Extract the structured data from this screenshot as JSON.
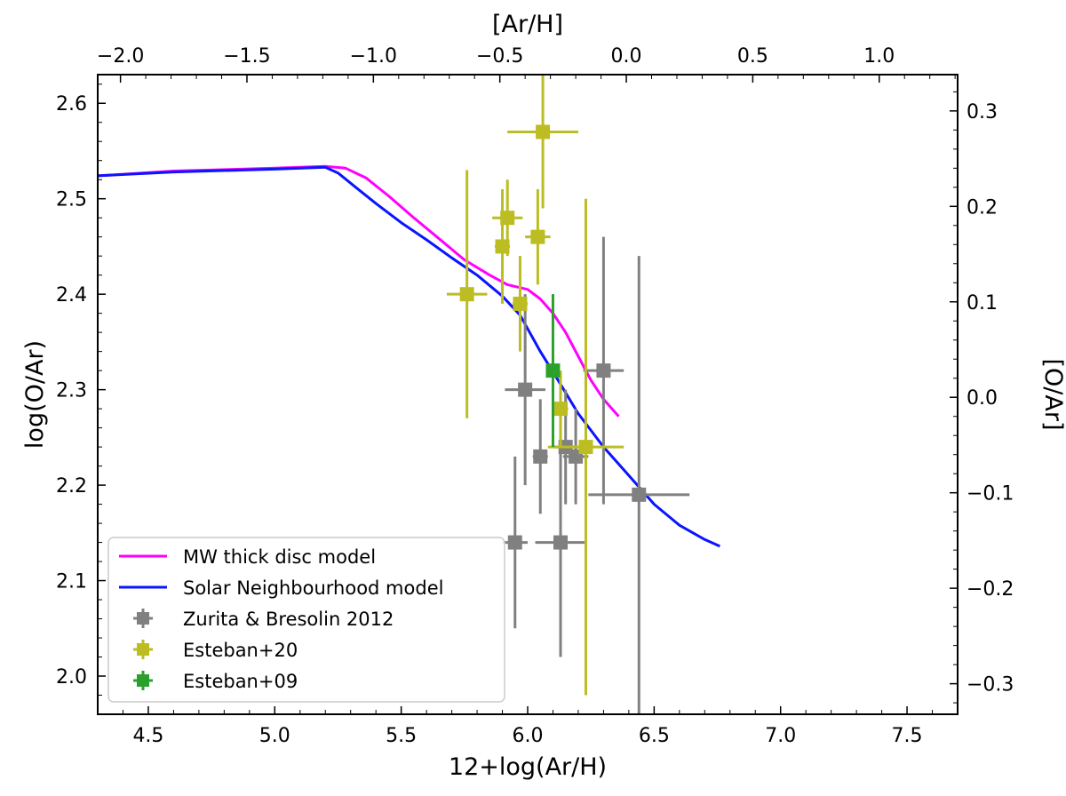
{
  "chart_data": {
    "type": "scatter",
    "xlabel": "12+log(Ar/H)",
    "ylabel": "log(O/Ar)",
    "top_xlabel": "[Ar/H]",
    "right_ylabel": "[O/Ar]",
    "xlim": [
      4.3,
      7.7
    ],
    "ylim": [
      1.96,
      2.63
    ],
    "top_xlim": [
      -2.09,
      1.31
    ],
    "right_ylim": [
      -0.332,
      0.338
    ],
    "x_ticks": [
      4.5,
      5.0,
      5.5,
      6.0,
      6.5,
      7.0,
      7.5
    ],
    "x_tick_labels": [
      "4.5",
      "5.0",
      "5.5",
      "6.0",
      "6.5",
      "7.0",
      "7.5"
    ],
    "y_ticks": [
      2.0,
      2.1,
      2.2,
      2.3,
      2.4,
      2.5,
      2.6
    ],
    "y_tick_labels": [
      "2.0",
      "2.1",
      "2.2",
      "2.3",
      "2.4",
      "2.5",
      "2.6"
    ],
    "top_ticks": [
      -2.0,
      -1.5,
      -1.0,
      -0.5,
      0.0,
      0.5,
      1.0
    ],
    "top_tick_labels": [
      "−2.0",
      "−1.5",
      "−1.0",
      "−0.5",
      "0.0",
      "0.5",
      "1.0"
    ],
    "right_ticks": [
      -0.3,
      -0.2,
      -0.1,
      0.0,
      0.1,
      0.2,
      0.3
    ],
    "right_tick_labels": [
      "−0.3",
      "−0.2",
      "−0.1",
      "0.0",
      "0.1",
      "0.2",
      "0.3"
    ],
    "grid": false,
    "legend_position": "bottom-left",
    "lines": [
      {
        "name": "MW thick disc model",
        "color": "#ff00ff",
        "x": [
          4.3,
          4.6,
          5.0,
          5.2,
          5.28,
          5.36,
          5.45,
          5.55,
          5.65,
          5.75,
          5.85,
          5.92,
          6.0,
          6.05,
          6.1,
          6.15,
          6.2,
          6.25,
          6.3,
          6.36
        ],
        "y": [
          2.524,
          2.529,
          2.532,
          2.534,
          2.532,
          2.522,
          2.503,
          2.48,
          2.458,
          2.436,
          2.42,
          2.41,
          2.405,
          2.395,
          2.38,
          2.36,
          2.335,
          2.31,
          2.29,
          2.272
        ]
      },
      {
        "name": "Solar Neighbourhood model",
        "color": "#0a14ff",
        "x": [
          4.3,
          4.6,
          5.0,
          5.2,
          5.25,
          5.32,
          5.4,
          5.5,
          5.6,
          5.7,
          5.8,
          5.9,
          5.97,
          6.05,
          6.12,
          6.2,
          6.3,
          6.4,
          6.5,
          6.6,
          6.7,
          6.76
        ],
        "y": [
          2.524,
          2.528,
          2.531,
          2.533,
          2.527,
          2.512,
          2.495,
          2.475,
          2.457,
          2.438,
          2.42,
          2.398,
          2.378,
          2.34,
          2.31,
          2.275,
          2.24,
          2.21,
          2.18,
          2.158,
          2.143,
          2.136
        ]
      }
    ],
    "series": [
      {
        "name": "Zurita & Bresolin 2012",
        "color": "#808080",
        "points": [
          {
            "x": 5.99,
            "y": 2.3,
            "xerr": 0.08,
            "yerr": 0.1
          },
          {
            "x": 6.05,
            "y": 2.23,
            "xerr": 0.03,
            "yerr": 0.06
          },
          {
            "x": 6.15,
            "y": 2.24,
            "xerr": 0.05,
            "yerr": 0.06
          },
          {
            "x": 6.19,
            "y": 2.23,
            "xerr": 0.05,
            "yerr": 0.05
          },
          {
            "x": 6.3,
            "y": 2.32,
            "xerr": 0.08,
            "yerr": 0.14
          },
          {
            "x": 5.95,
            "y": 2.14,
            "xerr": 0.05,
            "yerr": 0.09
          },
          {
            "x": 6.13,
            "y": 2.14,
            "xerr": 0.1,
            "yerr": 0.12
          },
          {
            "x": 6.44,
            "y": 2.19,
            "xerr": 0.2,
            "yerr": 0.25
          }
        ]
      },
      {
        "name": "Esteban+20",
        "color": "#bcbd22",
        "points": [
          {
            "x": 5.76,
            "y": 2.4,
            "xerr": 0.08,
            "yerr": 0.13
          },
          {
            "x": 5.9,
            "y": 2.45,
            "xerr": 0.03,
            "yerr": 0.06
          },
          {
            "x": 5.92,
            "y": 2.48,
            "xerr": 0.06,
            "yerr": 0.04
          },
          {
            "x": 5.97,
            "y": 2.39,
            "xerr": 0.03,
            "yerr": 0.05
          },
          {
            "x": 6.04,
            "y": 2.46,
            "xerr": 0.05,
            "yerr": 0.05
          },
          {
            "x": 6.06,
            "y": 2.57,
            "xerr": 0.14,
            "yerr": 0.08
          },
          {
            "x": 6.13,
            "y": 2.28,
            "xerr": 0.03,
            "yerr": 0.04
          },
          {
            "x": 6.23,
            "y": 2.24,
            "xerr": 0.15,
            "yerr": 0.26
          }
        ]
      },
      {
        "name": "Esteban+09",
        "color": "#2ca02c",
        "points": [
          {
            "x": 6.1,
            "y": 2.32,
            "xerr": 0.01,
            "yerr": 0.08
          }
        ]
      }
    ],
    "legend": [
      {
        "label": "MW thick disc model",
        "kind": "line",
        "color": "#ff00ff"
      },
      {
        "label": "Solar Neighbourhood model",
        "kind": "line",
        "color": "#0a14ff"
      },
      {
        "label": "Zurita & Bresolin 2012",
        "kind": "marker",
        "color": "#808080"
      },
      {
        "label": "Esteban+20",
        "kind": "marker",
        "color": "#bcbd22"
      },
      {
        "label": "Esteban+09",
        "kind": "marker",
        "color": "#2ca02c"
      }
    ]
  }
}
